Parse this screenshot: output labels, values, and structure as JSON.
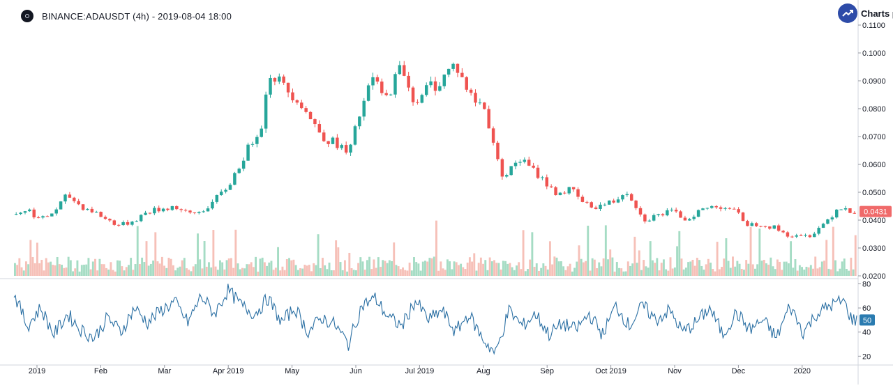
{
  "header": {
    "title": "BINANCE:ADAUSDT (4h) - 2019-08-04 18:00",
    "brand": "Charts p",
    "logo_icon": "exchange-logo-icon",
    "brand_icon": "trend-up-icon"
  },
  "colors": {
    "up": "#26a69a",
    "down": "#ef5350",
    "vol_up": "#a5dcc4",
    "vol_down": "#f6c0b8",
    "indicator": "#2a6fa3",
    "last_price_bg": "#f06a6a",
    "indicator_badge_bg": "#2a7bb0",
    "brand_bg": "#2d4ba8"
  },
  "chart_data": [
    {
      "type": "candlestick",
      "symbol": "BINANCE:ADAUSDT",
      "interval": "4h",
      "ylim": [
        0.02,
        0.11
      ],
      "y_ticks": [
        "0.1100",
        "0.1000",
        "0.0900",
        "0.0800",
        "0.0700",
        "0.0600",
        "0.0500",
        "0.0400",
        "0.0300",
        "0.0200"
      ],
      "x_ticks": [
        "2019",
        "Feb",
        "Mar",
        "Apr 2019",
        "May",
        "Jun",
        "Jul 2019",
        "Aug",
        "Sep",
        "Oct 2019",
        "Nov",
        "Dec",
        "2020"
      ],
      "last_price": "0.0431",
      "price_path": [
        [
          0,
          0.042
        ],
        [
          3,
          0.044
        ],
        [
          6,
          0.04
        ],
        [
          9,
          0.043
        ],
        [
          12,
          0.049
        ],
        [
          15,
          0.045
        ],
        [
          18,
          0.043
        ],
        [
          21,
          0.04
        ],
        [
          24,
          0.038
        ],
        [
          27,
          0.04
        ],
        [
          30,
          0.043
        ],
        [
          33,
          0.044
        ],
        [
          36,
          0.045
        ],
        [
          39,
          0.042
        ],
        [
          42,
          0.043
        ],
        [
          45,
          0.047
        ],
        [
          48,
          0.052
        ],
        [
          51,
          0.061
        ],
        [
          54,
          0.07
        ],
        [
          56,
          0.076
        ],
        [
          57,
          0.093
        ],
        [
          59,
          0.091
        ],
        [
          61,
          0.087
        ],
        [
          64,
          0.083
        ],
        [
          67,
          0.075
        ],
        [
          70,
          0.069
        ],
        [
          73,
          0.067
        ],
        [
          75,
          0.063
        ],
        [
          77,
          0.075
        ],
        [
          79,
          0.085
        ],
        [
          81,
          0.092
        ],
        [
          83,
          0.082
        ],
        [
          85,
          0.089
        ],
        [
          87,
          0.096
        ],
        [
          89,
          0.085
        ],
        [
          91,
          0.082
        ],
        [
          93,
          0.089
        ],
        [
          95,
          0.088
        ],
        [
          97,
          0.093
        ],
        [
          99,
          0.096
        ],
        [
          101,
          0.089
        ],
        [
          103,
          0.083
        ],
        [
          105,
          0.082
        ],
        [
          107,
          0.072
        ],
        [
          109,
          0.057
        ],
        [
          111,
          0.057
        ],
        [
          113,
          0.062
        ],
        [
          115,
          0.06
        ],
        [
          117,
          0.057
        ],
        [
          119,
          0.054
        ],
        [
          121,
          0.05
        ],
        [
          123,
          0.05
        ],
        [
          125,
          0.051
        ],
        [
          127,
          0.047
        ],
        [
          129,
          0.045
        ],
        [
          131,
          0.045
        ],
        [
          133,
          0.046
        ],
        [
          135,
          0.047
        ],
        [
          137,
          0.051
        ],
        [
          139,
          0.047
        ],
        [
          141,
          0.04
        ],
        [
          143,
          0.041
        ],
        [
          145,
          0.042
        ],
        [
          147,
          0.043
        ],
        [
          149,
          0.042
        ],
        [
          151,
          0.04
        ],
        [
          153,
          0.043
        ],
        [
          155,
          0.044
        ],
        [
          157,
          0.045
        ],
        [
          159,
          0.045
        ],
        [
          161,
          0.044
        ],
        [
          163,
          0.041
        ],
        [
          165,
          0.038
        ],
        [
          167,
          0.039
        ],
        [
          169,
          0.038
        ],
        [
          171,
          0.037
        ],
        [
          173,
          0.035
        ],
        [
          175,
          0.034
        ],
        [
          177,
          0.034
        ],
        [
          179,
          0.035
        ],
        [
          181,
          0.038
        ],
        [
          183,
          0.041
        ],
        [
          185,
          0.045
        ],
        [
          187,
          0.044
        ],
        [
          188,
          0.0431
        ]
      ],
      "volume_note": "relative volume bars shown along bottom of price pane"
    },
    {
      "type": "line",
      "name": "",
      "ylim": [
        15,
        82
      ],
      "y_ticks": [
        "80",
        "60",
        "40",
        "20"
      ],
      "last_value": "50",
      "path": [
        [
          0,
          72
        ],
        [
          3,
          45
        ],
        [
          6,
          60
        ],
        [
          9,
          38
        ],
        [
          12,
          55
        ],
        [
          15,
          42
        ],
        [
          18,
          35
        ],
        [
          21,
          52
        ],
        [
          24,
          40
        ],
        [
          27,
          60
        ],
        [
          30,
          48
        ],
        [
          33,
          58
        ],
        [
          36,
          65
        ],
        [
          39,
          48
        ],
        [
          42,
          70
        ],
        [
          45,
          55
        ],
        [
          48,
          75
        ],
        [
          51,
          62
        ],
        [
          54,
          55
        ],
        [
          57,
          68
        ],
        [
          60,
          48
        ],
        [
          63,
          60
        ],
        [
          66,
          40
        ],
        [
          69,
          52
        ],
        [
          72,
          46
        ],
        [
          75,
          30
        ],
        [
          78,
          62
        ],
        [
          81,
          68
        ],
        [
          84,
          52
        ],
        [
          87,
          45
        ],
        [
          90,
          66
        ],
        [
          93,
          50
        ],
        [
          96,
          58
        ],
        [
          99,
          40
        ],
        [
          102,
          55
        ],
        [
          105,
          35
        ],
        [
          108,
          22
        ],
        [
          111,
          58
        ],
        [
          114,
          45
        ],
        [
          117,
          55
        ],
        [
          120,
          38
        ],
        [
          123,
          47
        ],
        [
          126,
          42
        ],
        [
          129,
          55
        ],
        [
          132,
          38
        ],
        [
          135,
          62
        ],
        [
          138,
          45
        ],
        [
          141,
          62
        ],
        [
          144,
          50
        ],
        [
          147,
          58
        ],
        [
          150,
          40
        ],
        [
          153,
          48
        ],
        [
          156,
          60
        ],
        [
          159,
          38
        ],
        [
          162,
          56
        ],
        [
          165,
          42
        ],
        [
          168,
          50
        ],
        [
          171,
          35
        ],
        [
          174,
          62
        ],
        [
          177,
          40
        ],
        [
          180,
          55
        ],
        [
          183,
          62
        ],
        [
          186,
          66
        ],
        [
          188,
          50
        ]
      ]
    }
  ]
}
